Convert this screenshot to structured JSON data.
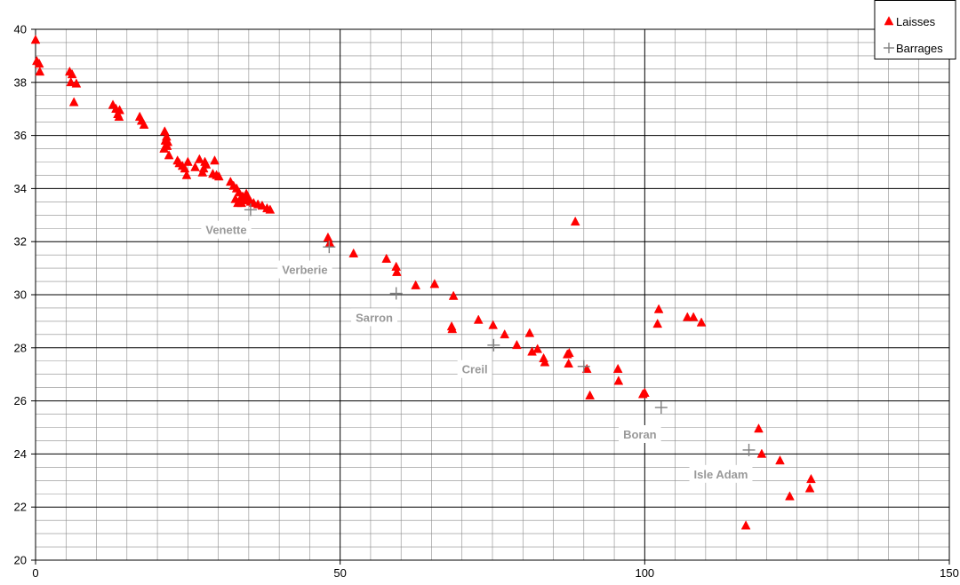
{
  "chart_data": {
    "type": "scatter",
    "title": "",
    "xlabel": "",
    "ylabel": "",
    "xlim": [
      0,
      150
    ],
    "ylim": [
      20,
      40
    ],
    "x_major_step": 50,
    "x_minor_step": 5,
    "y_major_step": 2,
    "y_minor_step": 0.5,
    "x_tick_labels": [
      "0",
      "50",
      "100",
      "150"
    ],
    "y_tick_labels": [
      "20",
      "22",
      "24",
      "26",
      "28",
      "30",
      "32",
      "34",
      "36",
      "38",
      "40"
    ],
    "grid": true,
    "legend_position": "top-right",
    "colors": {
      "laisses": "#ff0000",
      "barrages": "#808080",
      "annotation": "#999999"
    },
    "series": [
      {
        "name": "Laisses",
        "marker": "triangle",
        "points": [
          [
            0,
            39.6
          ],
          [
            0.2,
            38.8
          ],
          [
            0.6,
            38.7
          ],
          [
            0.7,
            38.4
          ],
          [
            5.6,
            38.4
          ],
          [
            5.8,
            38.0
          ],
          [
            6.0,
            38.3
          ],
          [
            6.3,
            37.25
          ],
          [
            6.7,
            37.95
          ],
          [
            12.7,
            37.15
          ],
          [
            13.2,
            37.0
          ],
          [
            13.5,
            36.8
          ],
          [
            13.7,
            36.7
          ],
          [
            13.8,
            36.95
          ],
          [
            17.1,
            36.7
          ],
          [
            17.4,
            36.55
          ],
          [
            17.8,
            36.4
          ],
          [
            21.1,
            35.5
          ],
          [
            21.2,
            36.15
          ],
          [
            21.3,
            35.8
          ],
          [
            21.5,
            35.95
          ],
          [
            21.6,
            35.6
          ],
          [
            21.7,
            35.75
          ],
          [
            21.9,
            35.25
          ],
          [
            23.3,
            35.05
          ],
          [
            23.6,
            34.95
          ],
          [
            24.1,
            34.85
          ],
          [
            24.5,
            34.75
          ],
          [
            24.8,
            34.5
          ],
          [
            25.0,
            35.0
          ],
          [
            26.2,
            34.8
          ],
          [
            26.9,
            35.1
          ],
          [
            27.4,
            34.6
          ],
          [
            27.6,
            34.75
          ],
          [
            27.8,
            35.0
          ],
          [
            28.0,
            34.9
          ],
          [
            29.1,
            34.55
          ],
          [
            29.4,
            35.05
          ],
          [
            29.7,
            34.5
          ],
          [
            30.1,
            34.45
          ],
          [
            32.0,
            34.25
          ],
          [
            32.5,
            34.1
          ],
          [
            32.8,
            33.6
          ],
          [
            33.0,
            34.0
          ],
          [
            33.2,
            33.45
          ],
          [
            33.4,
            33.85
          ],
          [
            33.6,
            33.6
          ],
          [
            33.8,
            33.45
          ],
          [
            34.0,
            33.7
          ],
          [
            34.3,
            33.55
          ],
          [
            34.6,
            33.8
          ],
          [
            34.9,
            33.65
          ],
          [
            35.3,
            33.5
          ],
          [
            35.8,
            33.45
          ],
          [
            36.5,
            33.4
          ],
          [
            37.2,
            33.35
          ],
          [
            38.0,
            33.25
          ],
          [
            38.5,
            33.2
          ],
          [
            48.0,
            32.15
          ],
          [
            48.3,
            31.95
          ],
          [
            52.2,
            31.55
          ],
          [
            57.6,
            31.35
          ],
          [
            59.2,
            31.05
          ],
          [
            59.3,
            30.85
          ],
          [
            62.4,
            30.35
          ],
          [
            65.5,
            30.4
          ],
          [
            68.3,
            28.8
          ],
          [
            68.4,
            28.7
          ],
          [
            68.6,
            29.95
          ],
          [
            72.7,
            29.05
          ],
          [
            75.1,
            28.85
          ],
          [
            77.0,
            28.5
          ],
          [
            79.0,
            28.1
          ],
          [
            81.1,
            28.55
          ],
          [
            81.5,
            27.85
          ],
          [
            82.4,
            27.95
          ],
          [
            83.4,
            27.6
          ],
          [
            83.6,
            27.45
          ],
          [
            87.3,
            27.75
          ],
          [
            87.5,
            27.4
          ],
          [
            87.6,
            27.8
          ],
          [
            88.6,
            32.75
          ],
          [
            90.5,
            27.2
          ],
          [
            91.0,
            26.2
          ],
          [
            95.6,
            27.2
          ],
          [
            95.7,
            26.75
          ],
          [
            99.7,
            26.25
          ],
          [
            100.0,
            26.3
          ],
          [
            102.1,
            28.9
          ],
          [
            102.3,
            29.45
          ],
          [
            107.0,
            29.15
          ],
          [
            108.0,
            29.15
          ],
          [
            109.3,
            28.95
          ],
          [
            116.6,
            21.3
          ],
          [
            118.7,
            24.95
          ],
          [
            119.2,
            24.0
          ],
          [
            122.2,
            23.75
          ],
          [
            123.8,
            22.4
          ],
          [
            127.1,
            22.7
          ],
          [
            127.3,
            23.05
          ]
        ]
      },
      {
        "name": "Barrages",
        "marker": "plus",
        "points": [
          [
            35.3,
            33.2
          ],
          [
            48.2,
            31.8
          ],
          [
            59.2,
            30.05
          ],
          [
            75.2,
            28.1
          ],
          [
            90.0,
            27.3
          ],
          [
            102.7,
            25.75
          ],
          [
            117.1,
            24.15
          ]
        ]
      }
    ],
    "annotations": [
      {
        "text": "Venette",
        "x": 31.3,
        "y": 32.45
      },
      {
        "text": "Verberie",
        "x": 44.2,
        "y": 30.95
      },
      {
        "text": "Sarron",
        "x": 55.6,
        "y": 29.15
      },
      {
        "text": "Creil",
        "x": 72.1,
        "y": 27.2
      },
      {
        "text": "Boran",
        "x": 99.2,
        "y": 24.75
      },
      {
        "text": "Isle Adam",
        "x": 112.5,
        "y": 23.25
      }
    ]
  }
}
